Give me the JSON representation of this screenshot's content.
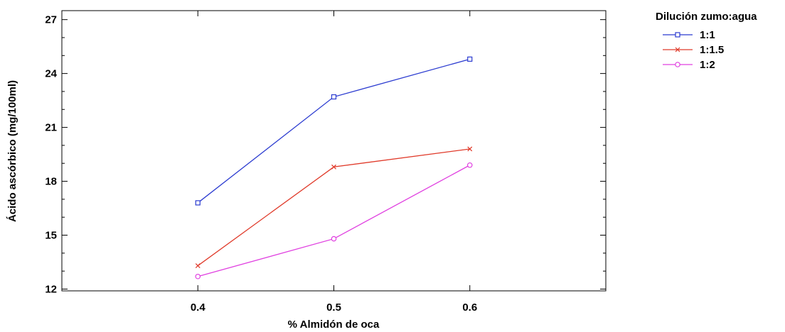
{
  "chart_data": {
    "type": "line",
    "xlabel": "% Almidón de oca",
    "ylabel": "Ácido ascórbico (mg/100ml)",
    "categories": [
      "0.4",
      "0.5",
      "0.6"
    ],
    "x": [
      0.4,
      0.5,
      0.6
    ],
    "xlim": [
      0.3,
      0.7
    ],
    "ylim": [
      11.9,
      27.5
    ],
    "y_ticks": [
      12,
      15,
      18,
      21,
      24,
      27
    ],
    "grid": false,
    "legend": {
      "title": "Dilución zumo:agua",
      "placement": "top-right-outside"
    },
    "series": [
      {
        "name": "1:1",
        "values": [
          16.8,
          22.7,
          24.8
        ],
        "color": "#2b3bd0",
        "marker": "square"
      },
      {
        "name": "1:1.5",
        "values": [
          13.3,
          18.8,
          19.8
        ],
        "color": "#e03a2a",
        "marker": "x"
      },
      {
        "name": "1:2",
        "values": [
          12.7,
          14.8,
          18.9
        ],
        "color": "#e040e0",
        "marker": "circle"
      }
    ]
  }
}
